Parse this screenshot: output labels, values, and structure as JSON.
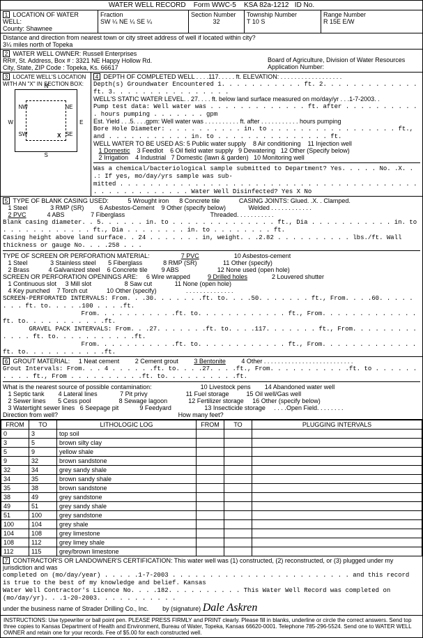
{
  "header": {
    "title": "WATER WELL RECORD",
    "form": "Form WWC-5",
    "ksa": "KSA 82a-1212",
    "idLabel": "ID No."
  },
  "section1": {
    "title": "LOCATION OF WATER WELL:",
    "county": "Shawnee",
    "fractionLabel": "Fraction",
    "fraction": "SW ¼ NE ¼ SE ¼",
    "sectionNumberLabel": "Section Number",
    "sectionNumber": "32",
    "townshipLabel": "Township Number",
    "township": "T    10    S",
    "rangeLabel": "Range Number",
    "range": "R   15E   E/W",
    "distanceLabel": "Distance and direction from nearest town or city street address of well if located within city?",
    "distance": "3¼ miles north of Topeka"
  },
  "section2": {
    "title": "WATER WELL OWNER:",
    "owner": "Russell Enterprises",
    "addressLabel": "RR#, St. Address, Box # :",
    "address": "3321 NE Happy Hollow Rd.",
    "cityLabel": "City, State, ZIP Code :",
    "city": "Topeka, Ks.  66617",
    "boardLabel": "Board of Agriculture, Division of Water Resources",
    "appLabel": "Application Number:"
  },
  "section3": {
    "title": "LOCATE WELL'S LOCATION WITH AN \"X\" IN SECTION BOX:",
    "compass": {
      "n": "N",
      "s": "S",
      "e": "E",
      "w": "W",
      "nw": "NW",
      "ne": "NE",
      "sw": "SW",
      "se": "SE"
    },
    "mile": "1 Mile"
  },
  "section4": {
    "title": "DEPTH OF COMPLETED WELL",
    "depth": "117",
    "elevLabel": "ft. ELEVATION:",
    "groundwater": "Depth(s) Groundwater Encountered   1. . . . . . . . . . . ft.  2. . . . . . . . . . . . . ft.  3. . . . . . . . . . . . . . . .",
    "staticLabel": "WELL'S STATIC WATER LEVEL",
    "static": "27",
    "staticSuffix": "ft. below land surface measured on mo/day/yr",
    "staticDate": "1-7-2003",
    "pumpTest": "Pump test data:  Well water was . . . . . . . . . . . . . ft. after . . . . . . . . . . . hours pumping . . . . . . . gpm",
    "estYieldLabel": "Est. Yield",
    "estYield": "5",
    "estYieldSuffix": "gpm:  Well water was . . . . . . . . . . ft. after . . . . . . . . . . . hours pumping",
    "boreHole": "Bore Hole Diameter: . . . . . . . . . . in. to . . . . . . . . . . . . . . . . . ft., and . . . . . . . . . . . in. to . . . . . . . . . . . . . . . ft.",
    "useLabel": "WELL WATER TO BE USED AS:",
    "uses": [
      "5 Public water supply",
      "8 Air conditioning",
      "11 Injection well",
      "1 Domestic",
      "3 Feedlot",
      "6 Oil field water supply",
      "9 Dewatering",
      "12 Other (Specify below)",
      "2 Irrigation",
      "4 Industrial",
      "7 Domestic (lawn & garden)",
      "10 Monitoring well"
    ],
    "chemical": "Was a chemical/bacteriological sample submitted to Department?  Yes. . . . . No. .X. . .: If yes, mo/day/yrs sample was sub-",
    "mitted": "mitted . . . . . . . . . . . . . . . . . . . . . . . . . . . . . . . . . . . . . . . . . . . . . . . . . . . . .  Water Well Disinfected?   Yes     X           No"
  },
  "section5": {
    "title": "TYPE OF BLANK CASING USED:",
    "casingTypes": [
      "1 Steel",
      "3 RMP (SR)",
      "5 Wrought iron",
      "6 Asbestos-Cement",
      "8 Concrete tile",
      "9 Other (specify below)",
      "2 PVC",
      "4 ABS",
      "7 Fiberglass"
    ],
    "casingJoints": "CASING JOINTS: Glued. .X. . Clamped.",
    "welded": "Welded . . . . . . . . . . . .",
    "threaded": "Threaded. . . . . . . . . . .",
    "blankDiameter": "Blank casing diameter. . 5. . . . . . in. to . . . . . . . . . . . . . . ft., Dia . . . . . . . . . . . in. to . . . . . . . . . . . . ft., Dia . . . . . . . . in. to . . . . . . . . ft.",
    "casingHeight": "Casing height above land surface. . 24 . . . . . . . in, weight. . .2.82 . . . . . . . . . . lbs./ft. Wall thickness or gauge No. . . .258 . . .",
    "screenTitle": "TYPE OF SCREEN OR PERFORATION MATERIAL:",
    "screenTypes": [
      "1 Steel",
      "3 Stainless steel",
      "5 Fiberglass",
      "7 PVC",
      "8 RMP (SR)",
      "10 Asbestos-cement",
      "11 Other (specify)",
      "2 Brass",
      "4 Galvanized steel",
      "6 Concrete tile",
      "9 ABS",
      "12 None used (open hole)"
    ],
    "openingsTitle": "SCREEN OR PERFORATION OPENINGS ARE:",
    "openings": [
      "1 Continuous slot",
      "3 Mill slot",
      "5 Gauzed wrapped",
      "6 Wire wrapped",
      "8 Saw cut",
      "9 Drilled holes",
      "11 None (open hole)",
      "2 Louvered shutter",
      "4 Key punched",
      "7 Torch cut",
      "10 Other (specify)"
    ],
    "perforated": "SCREEN-PERFORATED INTERVALS:  From. . .30. . . . . . .ft. to. . . .50. . . . . . . ft., From. . . .60. . . . . . . . ft. to. . . . .100 . . . .ft.",
    "perforated2": "From. . . . . . . . . . .ft. to. . . . . . . . . . . . ft., From. . . . . . . . . . . . . ft. to. . . . . . . . . . .ft.",
    "gravel": "GRAVEL PACK INTERVALS:  From. . .27. . . . . . .ft. to. . . .117. . . . . . . ft., From. . . . . . . . . . . . . ft. to. . . . . . . . . . .ft.",
    "gravel2": "From. . . . . . . . . . .ft. to. . . . . . . . . . . . ft., From. . . . . . . . . . . . . ft. to. . . . . . . . . . .ft."
  },
  "section6": {
    "title": "GROUT MATERIAL:",
    "materials": [
      "1 Neat cement",
      "2 Cement grout",
      "3 Bentonite",
      "4 Other"
    ],
    "intervals": "Grout Intervals:   From. . . 4 . . . . . .ft. to. . . .27. . . .ft., From. . . . . . . . . . .ft. to . . . . . . . . . . ft., From . . . . . . . . . .ft. to. . . . . . . . . .ft.",
    "contamLabel": "What is the nearest source of possible contamination:",
    "contamItems": [
      "1 Septic tank",
      "4 Lateral lines",
      "7 Pit privy",
      "10 Livestock pens",
      "11 Fuel storage",
      "14 Abandoned water well",
      "15 Oil well/Gas well",
      "2 Sewer lines",
      "5 Cess pool",
      "8 Sewage lagoon",
      "12 Fertilizer storage",
      "16 Other (specify below)",
      "3 Watertight sewer lines",
      "6 Seepage pit",
      "9 Feedyard",
      "13 Insecticide storage"
    ],
    "openField": "Open Field",
    "direction": "Direction from well?",
    "howMany": "How many feet?"
  },
  "lithLog": {
    "headers": [
      "FROM",
      "TO",
      "LITHOLOGIC LOG",
      "FROM",
      "TO",
      "PLUGGING INTERVALS"
    ],
    "rows": [
      [
        "0",
        "3",
        "top soil",
        "",
        "",
        ""
      ],
      [
        "3",
        "5",
        "brown silty clay",
        "",
        "",
        ""
      ],
      [
        "5",
        "9",
        "yellow shale",
        "",
        "",
        ""
      ],
      [
        "9",
        "32",
        "brown sandstone",
        "",
        "",
        ""
      ],
      [
        "32",
        "34",
        "grey sandy shale",
        "",
        "",
        ""
      ],
      [
        "34",
        "35",
        "brown sandy shale",
        "",
        "",
        ""
      ],
      [
        "35",
        "38",
        "brown sandstone",
        "",
        "",
        ""
      ],
      [
        "38",
        "49",
        "grey sandstone",
        "",
        "",
        ""
      ],
      [
        "49",
        "51",
        "grey sandy shale",
        "",
        "",
        ""
      ],
      [
        "51",
        "100",
        "grey sandstone",
        "",
        "",
        ""
      ],
      [
        "100",
        "104",
        "grey shale",
        "",
        "",
        ""
      ],
      [
        "104",
        "108",
        "grey limestone",
        "",
        "",
        ""
      ],
      [
        "108",
        "112",
        "grey limey shale",
        "",
        "",
        ""
      ],
      [
        "112",
        "115",
        "grey/brown limestone",
        "",
        "",
        ""
      ]
    ]
  },
  "section7": {
    "cert": "CONTRACTOR'S OR LANDOWNER'S CERTIFICATION: This water well was (1) constructed, (2) reconstructed, or (3) plugged under my jurisdiction and was",
    "completed": "completed on (mo/day/year) . . . . .1-7-2003 . . . . . . . . . . . . . . . . . . . . . . . . and this record is true to the best of my knowledge and belief. Kansas",
    "licence": "Water Well Contractor's Licence No. . . .182. . . . . . . . . . This Water Well Record was completed on (mo/day/yr). . .1-20-2003. . . . . . . . . . .",
    "business": "under the business name of",
    "company": "Strader Drilling Co., Inc.",
    "sigLabel": "by   (signature)",
    "signature": "Dale Askren"
  },
  "footer": "INSTRUCTIONS: Use typewriter or ball point pen. PLEASE PRESS FIRMLY and PRINT clearly. Please fill in blanks, underline or circle the correct answers. Send top three copies to Kansas Department of Health and Environment, Bureau of Water, Topeka, Kansas 66620-0001. Telephone 785-296-5524. Send one to WATER WELL OWNER and retain one for your records. Fee of $5.00 for each constructed well."
}
